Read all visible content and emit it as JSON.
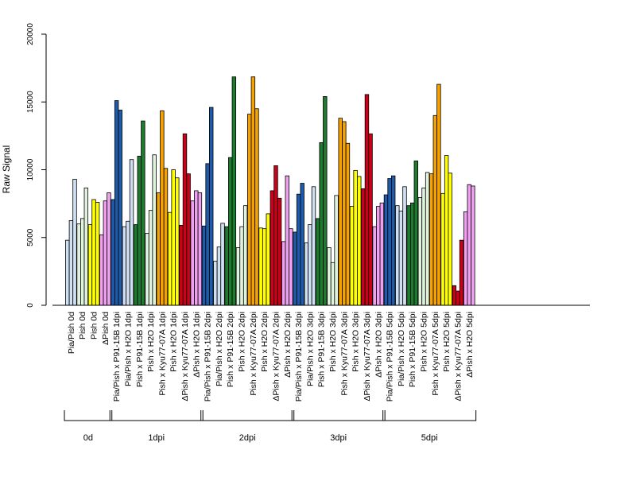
{
  "chart_data": {
    "type": "bar",
    "title": "",
    "xlabel": "",
    "ylabel": "Raw Signal",
    "ylim": [
      0,
      20000
    ],
    "yticks": [
      0,
      5000,
      10000,
      15000,
      20000
    ],
    "grid": false,
    "legend": "none",
    "bar_colors": {
      "lightblue": "#cfe0f3",
      "darkblue": "#1f5ba8",
      "green": "#1d7a2e",
      "palegreen": "#dff2dc",
      "orange": "#f5a100",
      "yellow": "#ffff00",
      "red": "#cc0018",
      "pink": "#f0a0f0"
    },
    "categories": [
      {
        "label": "Pia/Pish 0d",
        "group": "0d",
        "color": "lightblue",
        "values": [
          4800,
          6250,
          9300
        ]
      },
      {
        "label": "Pish 0d",
        "group": "0d",
        "color": "palegreen",
        "values": [
          6000,
          6400,
          8650
        ]
      },
      {
        "label": "Pish 0d",
        "group": "0d",
        "color": "yellow",
        "values": [
          5950,
          7800,
          7600
        ]
      },
      {
        "label": "ΔPish 0d",
        "group": "0d",
        "color": "pink",
        "values": [
          5200,
          7700,
          8300
        ]
      },
      {
        "label": "Pia/Pish x P91-15B 1dpi",
        "group": "1dpi",
        "color": "darkblue",
        "values": [
          7800,
          15100,
          14400
        ]
      },
      {
        "label": "Pia/Pish x H2O 1dpi",
        "group": "1dpi",
        "color": "lightblue",
        "values": [
          5800,
          6200,
          10750
        ]
      },
      {
        "label": "Pish x P91-15B 1dpi",
        "group": "1dpi",
        "color": "green",
        "values": [
          5950,
          11000,
          13600
        ]
      },
      {
        "label": "Pish x H2O 1dpi",
        "group": "1dpi",
        "color": "palegreen",
        "values": [
          5300,
          7000,
          11100
        ]
      },
      {
        "label": "Pish x Kyu77-07A 1dpi",
        "group": "1dpi",
        "color": "orange",
        "values": [
          8300,
          14350,
          10100
        ]
      },
      {
        "label": "Pish x H2O 1dpi",
        "group": "1dpi",
        "color": "yellow",
        "values": [
          6850,
          10000,
          9400
        ]
      },
      {
        "label": "ΔPish x Kyu77-07A 1dpi",
        "group": "1dpi",
        "color": "red",
        "values": [
          5900,
          12650,
          9700
        ]
      },
      {
        "label": "ΔPish x H2O 1dpi",
        "group": "1dpi",
        "color": "pink",
        "values": [
          7700,
          8450,
          8300
        ]
      },
      {
        "label": "Pia/Pish x P91-15B 2dpi",
        "group": "2dpi",
        "color": "darkblue",
        "values": [
          5850,
          10450,
          14600
        ]
      },
      {
        "label": "Pia/Pish x H2O 2dpi",
        "group": "2dpi",
        "color": "lightblue",
        "values": [
          3250,
          4300,
          6050
        ]
      },
      {
        "label": "Pish x P91-15B 2dpi",
        "group": "2dpi",
        "color": "green",
        "values": [
          5800,
          10900,
          16850
        ]
      },
      {
        "label": "Pish x H2O 2dpi",
        "group": "2dpi",
        "color": "palegreen",
        "values": [
          4250,
          5800,
          7350
        ]
      },
      {
        "label": "Pish x Kyu77-07A 2dpi",
        "group": "2dpi",
        "color": "orange",
        "values": [
          14100,
          16850,
          14500
        ]
      },
      {
        "label": "Pish x H2O 2dpi",
        "group": "2dpi",
        "color": "yellow",
        "values": [
          5700,
          5650,
          6750
        ]
      },
      {
        "label": "ΔPish x Kyu77-07A 2dpi",
        "group": "2dpi",
        "color": "red",
        "values": [
          8450,
          10300,
          7900
        ]
      },
      {
        "label": "ΔPish x H2O 2dpi",
        "group": "2dpi",
        "color": "pink",
        "values": [
          4700,
          9550,
          5650
        ]
      },
      {
        "label": "Pia/Pish x P91-15B 3dpi",
        "group": "3dpi",
        "color": "darkblue",
        "values": [
          5400,
          8200,
          9000
        ]
      },
      {
        "label": "Pia/Pish x H2O 3dpi",
        "group": "3dpi",
        "color": "lightblue",
        "values": [
          4600,
          5950,
          8750
        ]
      },
      {
        "label": "Pish x P91-15B 3dpi",
        "group": "3dpi",
        "color": "green",
        "values": [
          6400,
          12000,
          15400
        ]
      },
      {
        "label": "Pish x H2O 3dpi",
        "group": "3dpi",
        "color": "palegreen",
        "values": [
          4250,
          3150,
          8100
        ]
      },
      {
        "label": "Pish x Kyu77-07A 3dpi",
        "group": "3dpi",
        "color": "orange",
        "values": [
          13800,
          13550,
          11950
        ]
      },
      {
        "label": "Pish x H2O 3dpi",
        "group": "3dpi",
        "color": "yellow",
        "values": [
          7300,
          9950,
          9500
        ]
      },
      {
        "label": "ΔPish x Kyu77-07A 3dpi",
        "group": "3dpi",
        "color": "red",
        "values": [
          8600,
          15550,
          12650
        ]
      },
      {
        "label": "ΔPish x H2O 3dpi",
        "group": "3dpi",
        "color": "pink",
        "values": [
          5800,
          7300,
          7550
        ]
      },
      {
        "label": "Pia/Pish x P91-15B 5dpi",
        "group": "5dpi",
        "color": "darkblue",
        "values": [
          8150,
          9350,
          9550
        ]
      },
      {
        "label": "Pia/Pish x H2O 5dpi",
        "group": "5dpi",
        "color": "lightblue",
        "values": [
          7350,
          6950,
          8750
        ]
      },
      {
        "label": "Pish x P91-15B 5dpi",
        "group": "5dpi",
        "color": "green",
        "values": [
          7350,
          7550,
          10650
        ]
      },
      {
        "label": "Pish x H2O 5dpi",
        "group": "5dpi",
        "color": "palegreen",
        "values": [
          7950,
          8650,
          9800
        ]
      },
      {
        "label": "Pish x Kyu77-07A 5dpi",
        "group": "5dpi",
        "color": "orange",
        "values": [
          9700,
          14000,
          16300
        ]
      },
      {
        "label": "Pish x H2O 5dpi",
        "group": "5dpi",
        "color": "yellow",
        "values": [
          8250,
          11050,
          9750
        ]
      },
      {
        "label": "ΔPish x Kyu77-07A 5dpi",
        "group": "5dpi",
        "color": "red",
        "values": [
          1450,
          1050,
          4800
        ]
      },
      {
        "label": "ΔPish x H2O 5dpi",
        "group": "5dpi",
        "color": "pink",
        "values": [
          6900,
          8900,
          8800
        ]
      }
    ],
    "groups": [
      "0d",
      "1dpi",
      "2dpi",
      "3dpi",
      "5dpi"
    ]
  }
}
